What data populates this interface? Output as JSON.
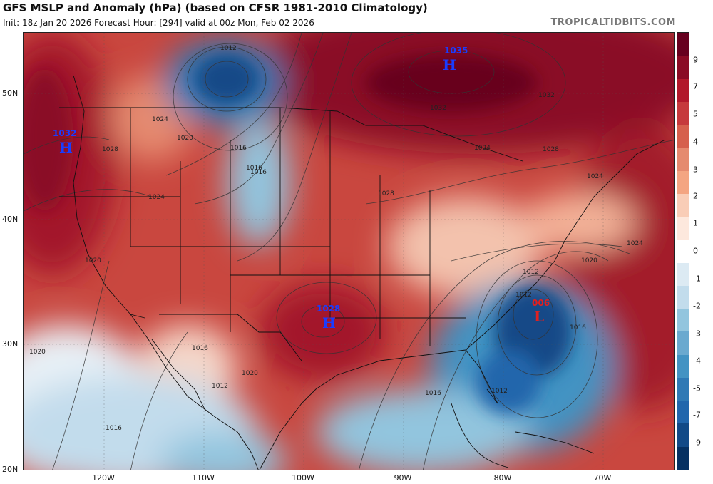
{
  "header": {
    "title": "GFS MSLP and Anomaly (hPa) (based on CFSR 1981-2010 Climatology)",
    "subtitle": "Init: 18z Jan 20 2026   Forecast Hour: [294]   valid at 00z Mon, Feb 02 2026",
    "brand": "TROPICALTIDBITS.COM"
  },
  "map": {
    "lat_labels": [
      "50N",
      "40N",
      "30N",
      "20N"
    ],
    "lon_labels": [
      "120W",
      "110W",
      "100W",
      "90W",
      "80W",
      "70W"
    ],
    "pressure_systems": [
      {
        "value": "1035",
        "letter": "H",
        "color": "#1a3cff"
      },
      {
        "value": "1032",
        "letter": "H",
        "color": "#1a3cff"
      },
      {
        "value": "1028",
        "letter": "H",
        "color": "#1a3cff"
      },
      {
        "value": "006",
        "letter": "L",
        "color": "#e02020"
      }
    ],
    "isobar_labels": [
      "1012",
      "1024",
      "1020",
      "1016",
      "1016",
      "1028",
      "1024",
      "1020",
      "1028",
      "1032",
      "1032",
      "1024",
      "1024",
      "1028",
      "1024",
      "1020",
      "1020",
      "1016",
      "1016",
      "1012",
      "1020",
      "1012",
      "1016",
      "1016",
      "1012",
      "1016",
      "1012"
    ]
  },
  "colorbar": {
    "labels": [
      "9",
      "7",
      "5",
      "4",
      "3",
      "2",
      "1",
      "0",
      "-1",
      "-2",
      "-3",
      "-4",
      "-5",
      "-7",
      "-9"
    ],
    "colors": [
      "#67001f",
      "#8a0b25",
      "#b2182b",
      "#c6393c",
      "#d6604d",
      "#e58a6f",
      "#f4a582",
      "#f9cdb7",
      "#fde8dd",
      "#ffffff",
      "#dceaf3",
      "#c2dcec",
      "#92c5de",
      "#6aa9cf",
      "#4393c3",
      "#2f79b5",
      "#2166ac",
      "#124a87",
      "#053061"
    ]
  }
}
